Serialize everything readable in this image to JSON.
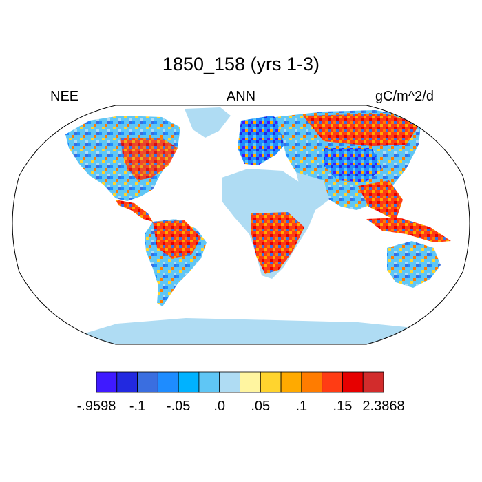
{
  "title": "1850_158 (yrs 1-3)",
  "left_label": "NEE",
  "center_label": "ANN",
  "right_label": "gC/m^2/d",
  "colorbar": {
    "colors": [
      "#3f1aff",
      "#2229e0",
      "#3a6ee0",
      "#1e8cff",
      "#00b2ff",
      "#5fc6f5",
      "#afdcf3",
      "#fff5a0",
      "#ffd42e",
      "#ffaa00",
      "#ff7c00",
      "#ff3c14",
      "#e60000",
      "#d22c2c"
    ],
    "labels": [
      "-.9598",
      "-.1",
      "-.05",
      ".0",
      ".05",
      ".1",
      ".15",
      "2.3868"
    ]
  },
  "colors": {
    "ocean": "#ffffff",
    "ice": "#afdcf3",
    "outline": "#000000"
  }
}
